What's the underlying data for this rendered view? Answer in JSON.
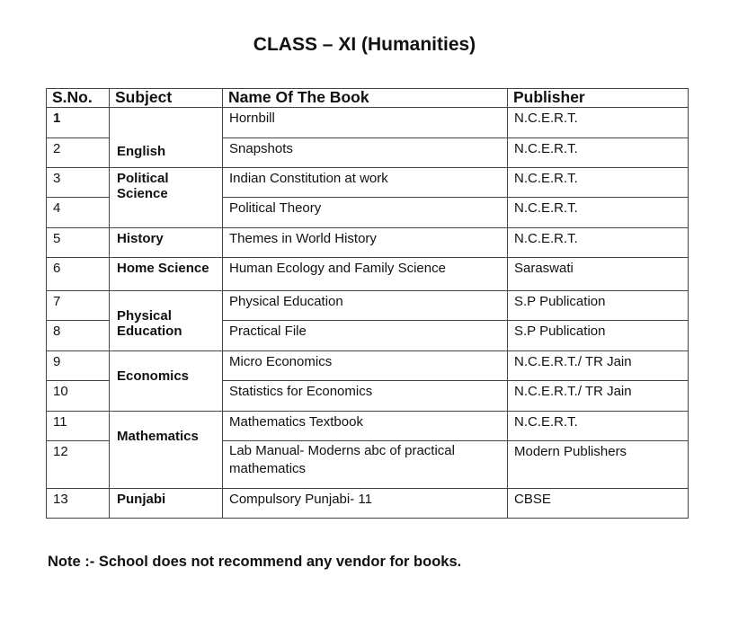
{
  "title": "CLASS – XI (Humanities)",
  "headers": [
    "S.No.",
    "Subject",
    "Name Of The Book",
    "Publisher"
  ],
  "rows": [
    {
      "sno": "1",
      "book": "Hornbill",
      "publisher": "N.C.E.R.T."
    },
    {
      "sno": "2",
      "book": "Snapshots",
      "publisher": "N.C.E.R.T."
    },
    {
      "sno": "3",
      "book": "Indian Constitution at work",
      "publisher": "N.C.E.R.T."
    },
    {
      "sno": "4",
      "book": "Political Theory",
      "publisher": "N.C.E.R.T."
    },
    {
      "sno": "5",
      "book": "Themes in World History",
      "publisher": "N.C.E.R.T."
    },
    {
      "sno": "6",
      "book": "Human Ecology and Family Science",
      "publisher": "Saraswati"
    },
    {
      "sno": "7",
      "book": "Physical Education",
      "publisher": "S.P Publication"
    },
    {
      "sno": "8",
      "book": "Practical File",
      "publisher": "S.P Publication"
    },
    {
      "sno": "9",
      "book": "Micro Economics",
      "publisher": "N.C.E.R.T./ TR Jain"
    },
    {
      "sno": "10",
      "book": "Statistics for Economics",
      "publisher": "N.C.E.R.T./ TR Jain"
    },
    {
      "sno": "11",
      "book": "Mathematics Textbook",
      "publisher": "N.C.E.R.T."
    },
    {
      "sno": "12",
      "book": "Lab Manual- Moderns abc of practical mathematics",
      "publisher": "Modern Publishers"
    },
    {
      "sno": "13",
      "book": "Compulsory Punjabi- 11",
      "publisher": "CBSE"
    }
  ],
  "subjects": [
    "English",
    "Political Science",
    "History",
    "Home Science",
    "Physical Education",
    "Economics",
    "Mathematics",
    "Punjabi"
  ],
  "note": "Note :- School does not recommend any vendor for books."
}
